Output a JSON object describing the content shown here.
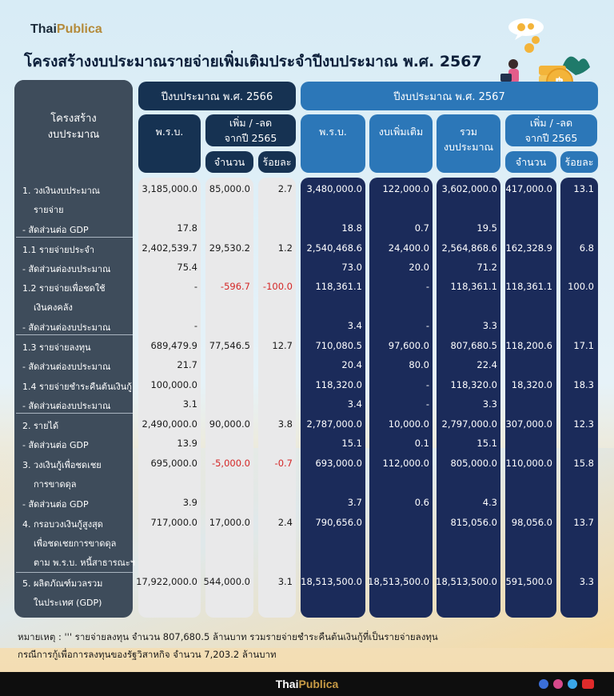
{
  "brand": {
    "part1": "Thai",
    "part2": "Publica"
  },
  "title": "โครงสร้างงบประมาณรายจ่ายเพิ่มเติมประจำปีงบประมาณ พ.ศ. 2567",
  "header": {
    "structure": [
      "โครงสร้าง",
      "งบประมาณ"
    ],
    "year_2566": "ปีงบประมาณ พ.ศ. 2566",
    "year_2567": "ปีงบประมาณ พ.ศ. 2567",
    "prb": "พ.ร.บ.",
    "change_2566": [
      "เพิ่ม / -ลด",
      "จากปี 2565"
    ],
    "amount": "จำนวน",
    "percent": "ร้อยละ",
    "prb_2567": "พ.ร.บ.",
    "supplement": "งบเพิ่มเติม",
    "total": [
      "รวม",
      "งบประมาณ"
    ],
    "change_2567": [
      "เพิ่ม / -ลด",
      "จากปี 2565"
    ],
    "amount_2567": "จำนวน",
    "percent_2567": "ร้อยละ"
  },
  "rows": [
    {
      "label": [
        "1. วงเงินงบประมาณ",
        "รายจ่าย"
      ],
      "v": [
        "3,185,000.0",
        "85,000.0",
        "2.7",
        "3,480,000.0",
        "122,000.0",
        "3,602,000.0",
        "417,000.0",
        "13.1"
      ]
    },
    {
      "label": [
        "- สัดส่วนต่อ GDP"
      ],
      "v": [
        "17.8",
        "",
        "",
        "18.8",
        "0.7",
        "19.5",
        "",
        ""
      ]
    },
    {
      "label": [
        "1.1 รายจ่ายประจำ"
      ],
      "v": [
        "2,402,539.7",
        "29,530.2",
        "1.2",
        "2,540,468.6",
        "24,400.0",
        "2,564,868.6",
        "162,328.9",
        "6.8"
      ]
    },
    {
      "label": [
        "- สัดส่วนต่องบประมาณ"
      ],
      "v": [
        "75.4",
        "",
        "",
        "73.0",
        "20.0",
        "71.2",
        "",
        ""
      ]
    },
    {
      "label": [
        "1.2 รายจ่ายเพื่อชดใช้",
        "เงินคงคลัง"
      ],
      "v": [
        "-",
        "-596.7",
        "-100.0",
        "118,361.1",
        "-",
        "118,361.1",
        "118,361.1",
        "100.0"
      ]
    },
    {
      "label": [
        "- สัดส่วนต่องบประมาณ"
      ],
      "v": [
        "-",
        "",
        "",
        "3.4",
        "-",
        "3.3",
        "",
        ""
      ]
    },
    {
      "label": [
        "1.3 รายจ่ายลงทุน"
      ],
      "v": [
        "689,479.9",
        "77,546.5",
        "12.7",
        "710,080.5",
        "97,600.0",
        "807,680.5",
        "118,200.6",
        "17.1"
      ]
    },
    {
      "label": [
        "- สัดส่วนต่องบประมาณ"
      ],
      "v": [
        "21.7",
        "",
        "",
        "20.4",
        "80.0",
        "22.4",
        "",
        ""
      ]
    },
    {
      "label": [
        "1.4 รายจ่ายชำระคืนต้นเงินกู้"
      ],
      "v": [
        "100,000.0",
        "",
        "",
        "118,320.0",
        "-",
        "118,320.0",
        "18,320.0",
        "18.3"
      ]
    },
    {
      "label": [
        "- สัดส่วนต่องบประมาณ"
      ],
      "v": [
        "3.1",
        "",
        "",
        "3.4",
        "-",
        "3.3",
        "",
        ""
      ]
    },
    {
      "label": [
        "2. รายได้"
      ],
      "v": [
        "2,490,000.0",
        "90,000.0",
        "3.8",
        "2,787,000.0",
        "10,000.0",
        "2,797,000.0",
        "307,000.0",
        "12.3"
      ]
    },
    {
      "label": [
        "- สัดส่วนต่อ GDP"
      ],
      "v": [
        "13.9",
        "",
        "",
        "15.1",
        "0.1",
        "15.1",
        "",
        ""
      ]
    },
    {
      "label": [
        "3. วงเงินกู้เพื่อชดเชย",
        "การขาดดุล"
      ],
      "v": [
        "695,000.0",
        "-5,000.0",
        "-0.7",
        "693,000.0",
        "112,000.0",
        "805,000.0",
        "110,000.0",
        "15.8"
      ]
    },
    {
      "label": [
        "- สัดส่วนต่อ GDP"
      ],
      "v": [
        "3.9",
        "",
        "",
        "3.7",
        "0.6",
        "4.3",
        "",
        ""
      ]
    },
    {
      "label": [
        "4. กรอบวงเงินกู้สูงสุด",
        "เพื่อชดเชยการขาดดุล",
        "ตาม พ.ร.บ. หนี้สาธารณะฯ"
      ],
      "v": [
        "717,000.0",
        "17,000.0",
        "2.4",
        "790,656.0",
        "",
        "815,056.0",
        "98,056.0",
        "13.7"
      ]
    },
    {
      "label": [
        "5. ผลิตภัณฑ์มวลรวม",
        "ในประเทศ (GDP)"
      ],
      "v": [
        "17,922,000.0",
        "544,000.0",
        "3.1",
        "18,513,500.0",
        "18,513,500.0",
        "18,513,500.0",
        "591,500.0",
        "3.3"
      ]
    }
  ],
  "notes": [
    "หมายเหตุ : ''' รายจ่ายลงทุน จำนวน 807,680.5 ล้านบาท รวมรายจ่ายชำระคืนต้นเงินกู้ที่เป็นรายจ่ายลงทุน",
    "กรณีการกู้เพื่อการลงทุนของรัฐวิสาหกิจ จำนวน  7,203.2 ล้านบาท"
  ],
  "footer": {
    "part1": "Thai",
    "part2": "Publica"
  },
  "colors": {
    "dark_navy": "#1b2b5a",
    "header_navy": "#163252",
    "header_blue": "#2c77b8",
    "left_slate": "#3e4c5b",
    "negative_red": "#d42626",
    "brand_gold": "#b48a3a"
  }
}
